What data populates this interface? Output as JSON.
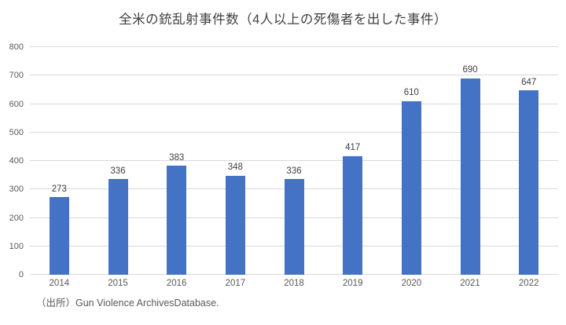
{
  "title": "全米の銃乱射事件数（4人以上の死傷者を出した事件）",
  "source_note": "（出所）Gun Violence ArchivesDatabase.",
  "colors": {
    "bar": "#4472c4",
    "gridline": "#d9d9d9",
    "axis_text": "#595959",
    "value_text": "#404040",
    "title_text": "#404040",
    "background": "#ffffff"
  },
  "chart_data": {
    "type": "bar",
    "title": "全米の銃乱射事件数（4人以上の死傷者を出した事件）",
    "categories": [
      "2014",
      "2015",
      "2016",
      "2017",
      "2018",
      "2019",
      "2020",
      "2021",
      "2022"
    ],
    "values": [
      273,
      336,
      383,
      348,
      336,
      417,
      610,
      690,
      647
    ],
    "xlabel": "",
    "ylabel": "",
    "ylim": [
      0,
      800
    ],
    "ytick_step": 100,
    "grid": true,
    "legend": false,
    "annotation": "（出所）Gun Violence ArchivesDatabase."
  }
}
